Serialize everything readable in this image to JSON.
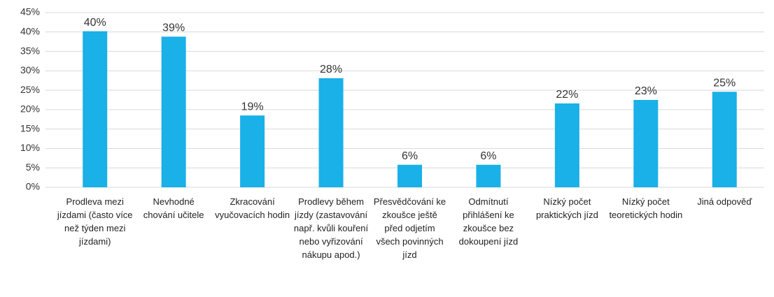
{
  "chart_data": {
    "type": "bar",
    "categories": [
      "Prodleva mezi jízdami (často více než týden mezi jízdami)",
      "Nevhodné chování učitele",
      "Zkracování vyučovacích hodin",
      "Prodlevy během jízdy (zastavování např. kvůli kouření nebo vyřizování nákupu apod.)",
      "Přesvědčování ke zkoušce ještě před odjetím všech povinných jízd",
      "Odmítnutí přihlášení ke zkoušce bez dokoupení jízd",
      "Nízký počet praktických jízd",
      "Nízký počet teoretických hodin",
      "Jiná odpověď"
    ],
    "values": [
      40.2,
      38.8,
      18.5,
      28.1,
      5.8,
      5.8,
      21.6,
      22.5,
      24.6
    ],
    "value_labels": [
      "40%",
      "39%",
      "19%",
      "28%",
      "6%",
      "6%",
      "22%",
      "23%",
      "25%"
    ],
    "color": "#1ab0e8",
    "ylim": [
      0,
      45
    ],
    "yticks": [
      {
        "value": 0,
        "label": "0%"
      },
      {
        "value": 5,
        "label": "5%"
      },
      {
        "value": 10,
        "label": "10%"
      },
      {
        "value": 15,
        "label": "15%"
      },
      {
        "value": 20,
        "label": "20%"
      },
      {
        "value": 25,
        "label": "25%"
      },
      {
        "value": 30,
        "label": "30%"
      },
      {
        "value": 35,
        "label": "35%"
      },
      {
        "value": 40,
        "label": "40%"
      },
      {
        "value": 45,
        "label": "45%"
      }
    ],
    "grid": true
  }
}
